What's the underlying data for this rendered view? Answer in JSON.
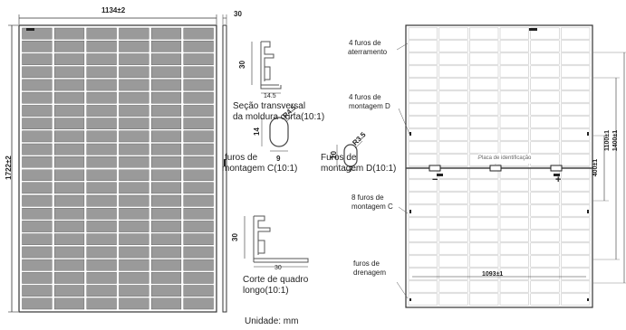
{
  "front": {
    "width_label": "1134±2",
    "height_label": "1722±2"
  },
  "side": {
    "thickness_label": "30"
  },
  "sections": {
    "short_frame": {
      "height": "30",
      "width": "14.5",
      "caption_line1": "Seção transversal",
      "caption_line2": "da moldura curta(10:1)"
    },
    "hole_c": {
      "radius": "R4.5",
      "height": "14",
      "width": "9",
      "caption_line1": "furos de",
      "caption_line2": "montagem C(10:1)"
    },
    "hole_d": {
      "radius": "R3.5",
      "height": "10",
      "width": "7",
      "caption_line1": "Furos de",
      "caption_line2": "montagem D(10:1)"
    },
    "long_frame": {
      "height": "30",
      "width": "30",
      "caption_line1": "Corte de quadro",
      "caption_line2": "longo(10:1)"
    }
  },
  "unit_label": "Unidade: mm",
  "back": {
    "callout_grounding_1": "4 furos de",
    "callout_grounding_2": "aterramento",
    "callout_mount_d_1": "4 furos de",
    "callout_mount_d_2": "montagem D",
    "nameplate": "Placa de identificação",
    "callout_mount_c_1": "8 furos de",
    "callout_mount_c_2": "montagem C",
    "callout_drain_1": "furos de",
    "callout_drain_2": "drenagem",
    "dim_400": "400±1",
    "dim_1100": "1100±1",
    "dim_1400": "1400±1",
    "dim_1093": "1093±1",
    "minus_sign": "−",
    "plus_sign": "+"
  }
}
